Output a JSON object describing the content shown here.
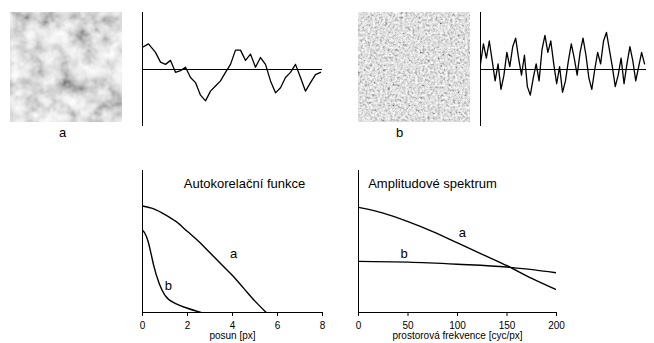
{
  "images": [
    {
      "label": "a"
    },
    {
      "label": "b"
    }
  ],
  "chart_data": [
    {
      "type": "line",
      "tick_labels": false,
      "xlim": [
        0,
        180
      ],
      "ylim": [
        -1,
        1
      ],
      "series": [
        {
          "color": "#000000",
          "x": [
            0,
            6,
            13,
            18,
            23,
            28,
            33,
            38,
            43,
            48,
            53,
            58,
            63,
            68,
            73,
            78,
            83,
            88,
            93,
            98,
            103,
            108,
            113,
            118,
            123,
            128,
            133,
            138,
            143,
            148,
            153,
            158,
            163,
            168,
            173,
            178
          ],
          "values": [
            0.39,
            0.45,
            0.3,
            0.13,
            0.09,
            0.16,
            -0.05,
            -0.02,
            0.04,
            -0.14,
            -0.23,
            -0.45,
            -0.55,
            -0.38,
            -0.29,
            -0.2,
            -0.05,
            0.09,
            0.34,
            0.34,
            0.16,
            0.27,
            0.04,
            0.21,
            0.09,
            -0.2,
            -0.41,
            -0.32,
            -0.14,
            -0.05,
            0.09,
            -0.14,
            -0.38,
            -0.23,
            -0.09,
            -0.05
          ]
        }
      ]
    },
    {
      "type": "line",
      "tick_labels": false,
      "xlim": [
        0,
        170
      ],
      "ylim": [
        -1,
        1
      ],
      "series": [
        {
          "color": "#000000",
          "x": [
            0,
            3,
            6,
            9,
            12,
            15,
            18,
            21,
            24,
            27,
            30,
            33,
            36,
            39,
            42,
            45,
            48,
            51,
            54,
            57,
            60,
            63,
            66,
            69,
            72,
            75,
            78,
            81,
            84,
            87,
            90,
            93,
            96,
            99,
            102,
            105,
            108,
            111,
            114,
            117,
            120,
            123,
            126,
            129,
            132,
            135,
            138,
            141,
            144,
            147,
            150,
            153,
            156,
            159,
            162,
            165,
            168
          ],
          "values": [
            0.1,
            0.45,
            0.2,
            0.5,
            0.15,
            -0.2,
            0.1,
            -0.35,
            -0.1,
            0.3,
            0.05,
            0.4,
            0.55,
            0.2,
            -0.1,
            0.25,
            -0.3,
            -0.45,
            -0.15,
            0.1,
            -0.2,
            0.35,
            0.6,
            0.3,
            0.5,
            0.1,
            -0.25,
            0.05,
            -0.4,
            -0.2,
            0.15,
            0.45,
            0.2,
            -0.1,
            0.3,
            0.55,
            0.25,
            -0.15,
            -0.35,
            0.0,
            0.3,
            0.1,
            0.5,
            0.65,
            0.35,
            0.05,
            -0.3,
            -0.1,
            0.2,
            -0.25,
            0.1,
            0.4,
            0.15,
            -0.2,
            0.05,
            0.3,
            0.1
          ]
        }
      ]
    },
    {
      "type": "line",
      "title": "Autokorelační funkce",
      "x_label": "posun [px]",
      "tick_labels": "x",
      "xlim": [
        0,
        8
      ],
      "ylim": [
        0,
        1
      ],
      "xticks": [
        0,
        2,
        4,
        6,
        8
      ],
      "series": [
        {
          "name": "a",
          "color": "#000000",
          "label_x": 4.05,
          "label_y": 0.41,
          "x": [
            0,
            0.5,
            1,
            1.5,
            2,
            2.5,
            3,
            3.5,
            4,
            4.5,
            5,
            5.5
          ],
          "values": [
            0.75,
            0.73,
            0.69,
            0.64,
            0.57,
            0.5,
            0.42,
            0.34,
            0.26,
            0.17,
            0.08,
            0.0
          ]
        },
        {
          "name": "b",
          "color": "#000000",
          "label_x": 1.15,
          "label_y": 0.19,
          "x": [
            0,
            0.1,
            0.25,
            0.4,
            0.5,
            0.75,
            1,
            1.5,
            2,
            2.6
          ],
          "values": [
            0.58,
            0.56,
            0.5,
            0.4,
            0.33,
            0.2,
            0.12,
            0.06,
            0.03,
            0.0
          ]
        }
      ]
    },
    {
      "type": "line",
      "title": "Amplitudové spektrum",
      "x_label": "prostorová frekvence [cyc/px]",
      "tick_labels": "x",
      "xlim": [
        0,
        200
      ],
      "ylim": [
        0,
        1
      ],
      "xticks": [
        0,
        50,
        100,
        150,
        200
      ],
      "series": [
        {
          "name": "a",
          "color": "#000000",
          "label_x": 105,
          "label_y": 0.56,
          "x": [
            0,
            25,
            50,
            75,
            100,
            125,
            150,
            175,
            200
          ],
          "values": [
            0.74,
            0.7,
            0.64,
            0.57,
            0.49,
            0.41,
            0.33,
            0.24,
            0.16
          ]
        },
        {
          "name": "b",
          "color": "#000000",
          "label_x": 46,
          "label_y": 0.41,
          "x": [
            0,
            50,
            100,
            150,
            200
          ],
          "values": [
            0.36,
            0.355,
            0.34,
            0.32,
            0.28
          ]
        }
      ]
    }
  ]
}
